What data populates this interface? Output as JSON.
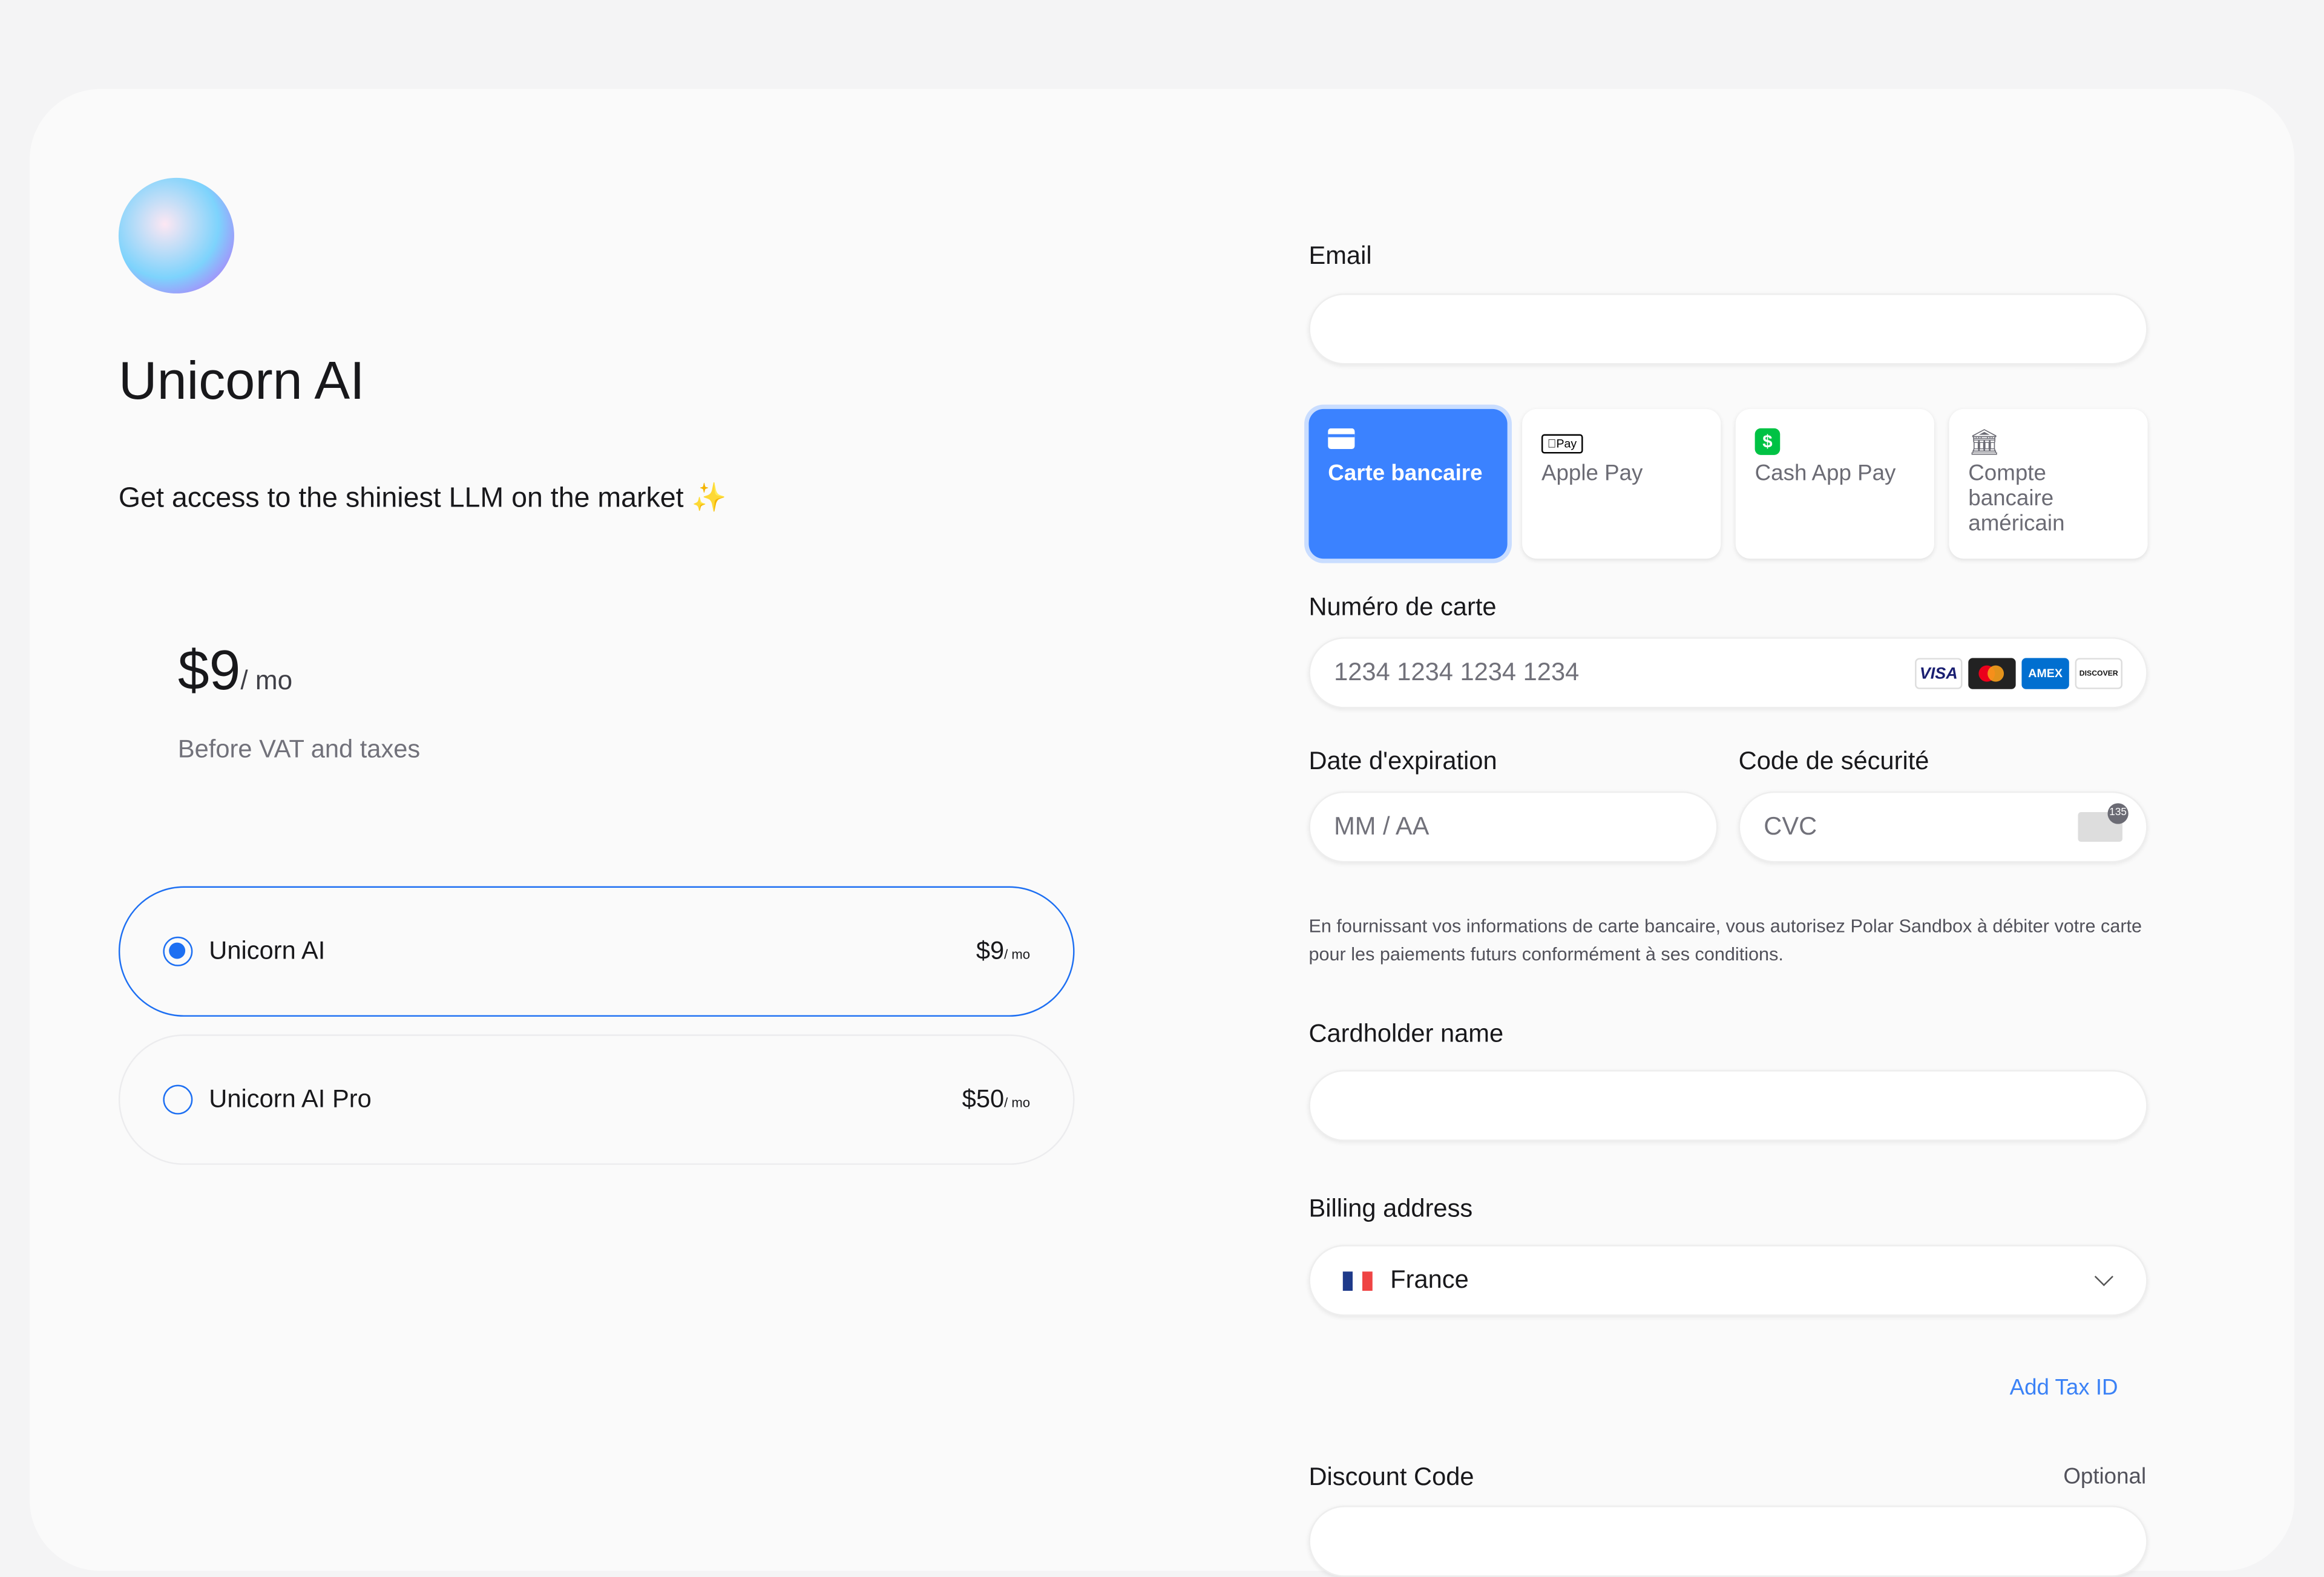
{
  "product": {
    "name": "Unicorn AI",
    "description": "Get access to the shiniest LLM on the market ✨",
    "price": "$9",
    "period": "/ mo",
    "price_note": "Before VAT and taxes"
  },
  "options": [
    {
      "name": "Unicorn AI",
      "price": "$9",
      "period": "/ mo",
      "selected": true
    },
    {
      "name": "Unicorn AI Pro",
      "price": "$50",
      "period": "/ mo",
      "selected": false
    }
  ],
  "form": {
    "email_label": "Email",
    "email_value": "",
    "methods": [
      {
        "label": "Carte bancaire",
        "icon": "credit-card-icon",
        "selected": true
      },
      {
        "label": "Apple Pay",
        "icon": "apple-pay-icon"
      },
      {
        "label": "Cash App Pay",
        "icon": "cash-app-icon"
      },
      {
        "label": "Compte bancaire américain",
        "icon": "bank-icon"
      }
    ],
    "card_label": "Numéro de carte",
    "card_placeholder": "1234 1234 1234 1234",
    "brands": [
      "VISA",
      "Mastercard",
      "AMEX",
      "DISCOVER"
    ],
    "expiry_label": "Date d'expiration",
    "expiry_placeholder": "MM / AA",
    "cvc_label": "Code de sécurité",
    "cvc_placeholder": "CVC",
    "cvc_badge": "135",
    "legal": "En fournissant vos informations de carte bancaire, vous autorisez Polar Sandbox à débiter votre carte pour les paiements futurs conformément à ses conditions.",
    "cardholder_label": "Cardholder name",
    "cardholder_value": "",
    "billing_label": "Billing address",
    "country": "France",
    "add_tax_id": "Add Tax ID",
    "discount_label": "Discount Code",
    "discount_optional": "Optional"
  },
  "colors": {
    "accent": "#3b82ff",
    "radio": "#1d6ff2"
  }
}
